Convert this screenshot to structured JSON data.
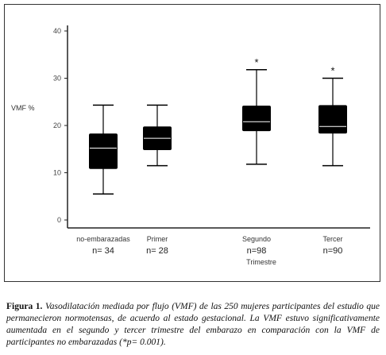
{
  "chart_data": {
    "type": "boxplot",
    "ylabel": "VMF  %",
    "xlabel": "Trimestre",
    "ylim": [
      0,
      40
    ],
    "yticks": [
      0,
      10,
      20,
      30,
      40
    ],
    "boxes": [
      {
        "category": "no-embarazadas",
        "n_label": "n= 34",
        "whisker_low": 5.5,
        "q1": 10.8,
        "median": 15.2,
        "q3": 18.3,
        "whisker_high": 24.3,
        "marker": ""
      },
      {
        "category": "Primer",
        "n_label": "n= 28",
        "whisker_low": 11.5,
        "q1": 14.8,
        "median": 17.3,
        "q3": 19.8,
        "whisker_high": 24.3,
        "marker": ""
      },
      {
        "category": "Segundo",
        "n_label": "n=98",
        "whisker_low": 11.8,
        "q1": 18.8,
        "median": 20.8,
        "q3": 24.2,
        "whisker_high": 31.8,
        "marker": "*"
      },
      {
        "category": "Tercer",
        "n_label": "n=90",
        "whisker_low": 11.5,
        "q1": 18.3,
        "median": 19.8,
        "q3": 24.3,
        "whisker_high": 30.0,
        "marker": "*"
      }
    ],
    "colors": {
      "box": "#000000",
      "median": "#ffffff",
      "axis": "#222222"
    }
  },
  "caption": {
    "label": "Figura 1.",
    "text": "Vasodilatación mediada por flujo (VMF) de las 250 mujeres participantes del estudio que permanecieron normotensas, de acuerdo al estado gestacional.  La VMF estuvo significativamente aumentada en el segundo y tercer trimestre del embarazo en comparación con la VMF de participantes no embarazadas (*p= 0.001)."
  }
}
